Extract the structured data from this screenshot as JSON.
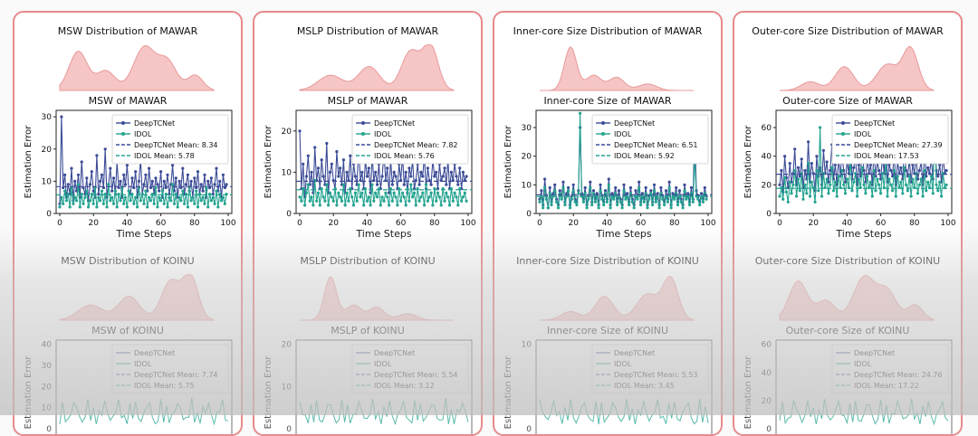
{
  "panels": [
    {
      "mawar": {
        "dist_title": "MSW Distribution of MAWAR",
        "chart_title": "MSW of MAWAR",
        "yticks": [
          0,
          10,
          20,
          30
        ],
        "means": {
          "deeptcnet": 8.34,
          "idol": 5.78
        },
        "legend": [
          "DeepTCNet",
          "IDOL",
          "DeepTCNet Mean: 8.34",
          "IDOL Mean: 5.78"
        ]
      },
      "koinu": {
        "dist_title": "MSW Distribution of KOINU",
        "chart_title": "MSW of KOINU",
        "yticks": [
          0,
          10,
          20,
          30,
          40
        ],
        "legend": [
          "DeepTCNet",
          "IDOL",
          "DeepTCNet Mean: 7.74",
          "IDOL Mean: 5.75"
        ]
      }
    },
    {
      "mawar": {
        "dist_title": "MSLP Distribution of MAWAR",
        "chart_title": "MSLP of MAWAR",
        "yticks": [
          0,
          10,
          20
        ],
        "means": {
          "deeptcnet": 7.82,
          "idol": 5.76
        },
        "legend": [
          "DeepTCNet",
          "IDOL",
          "DeepTCNet Mean: 7.82",
          "IDOL Mean: 5.76"
        ]
      },
      "koinu": {
        "dist_title": "MSLP Distribution of KOINU",
        "chart_title": "MSLP of KOINU",
        "yticks": [
          0,
          10,
          20
        ],
        "legend": [
          "DeepTCNet",
          "IDOL",
          "DeepTCNet Mean: 5.54",
          "IDOL Mean: 3.12"
        ]
      }
    },
    {
      "mawar": {
        "dist_title": "Inner-core Size Distribution of MAWAR",
        "chart_title": "Inner-core Size of MAWAR",
        "yticks": [
          0,
          10,
          20,
          30
        ],
        "means": {
          "deeptcnet": 6.51,
          "idol": 5.92
        },
        "legend": [
          "DeepTCNet",
          "IDOL",
          "DeepTCNet Mean: 6.51",
          "IDOL Mean: 5.92"
        ]
      },
      "koinu": {
        "dist_title": "Inner-core Size Distribution of KOINU",
        "chart_title": "Inner-core Size of KOINU",
        "yticks": [
          0,
          10
        ],
        "legend": [
          "DeepTCNet",
          "IDOL",
          "DeepTCNet Mean: 5.53",
          "IDOL Mean: 3.45"
        ]
      }
    },
    {
      "mawar": {
        "dist_title": "Outer-core Size Distribution of MAWAR",
        "chart_title": "Outer-core Size of MAWAR",
        "yticks": [
          0,
          20,
          40,
          60
        ],
        "means": {
          "deeptcnet": 27.39,
          "idol": 17.53
        },
        "legend": [
          "DeepTCNet",
          "IDOL",
          "DeepTCNet Mean: 27.39",
          "IDOL Mean: 17.53"
        ]
      },
      "koinu": {
        "dist_title": "Outer-core Size Distribution of KOINU",
        "chart_title": "Outer-core Size of KOINU",
        "yticks": [
          0,
          20,
          40,
          60
        ],
        "legend": [
          "DeepTCNet",
          "IDOL",
          "DeepTCNet Mean: 24.76",
          "IDOL Mean: 17.22"
        ]
      }
    }
  ],
  "axis": {
    "ylabel": "Estimation Error",
    "xlabel": "Time Steps",
    "xticks": [
      0,
      20,
      40,
      60,
      80,
      100
    ]
  },
  "colors": {
    "deeptcnet": "#3b4b96",
    "idol": "#23a38f",
    "dist_fill": "#f6c5c5",
    "dist_stroke": "#e89a9a",
    "border": "#e88a8a"
  },
  "chart_data": [
    {
      "type": "line",
      "title": "MSW of MAWAR",
      "xlabel": "Time Steps",
      "ylabel": "Estimation Error",
      "xlim": [
        0,
        100
      ],
      "ylim": [
        0,
        32
      ],
      "series": [
        {
          "name": "DeepTCNet",
          "values": [
            3,
            30,
            8,
            12,
            5,
            9,
            6,
            14,
            4,
            10,
            7,
            12,
            5,
            16,
            8,
            6,
            11,
            4,
            9,
            13,
            7,
            5,
            18,
            6,
            10,
            12,
            8,
            20,
            5,
            9,
            14,
            7,
            11,
            6,
            16,
            8,
            10,
            5,
            12,
            9,
            15,
            7,
            6,
            11,
            8,
            13,
            5,
            10,
            17,
            6,
            9,
            12,
            7,
            14,
            8,
            10,
            6,
            11,
            9,
            7,
            13,
            5,
            10,
            8,
            12,
            6,
            9,
            15,
            7,
            11,
            5,
            10,
            8,
            14,
            6,
            9,
            12,
            7,
            10,
            5,
            11,
            8,
            13,
            6,
            9,
            7,
            12,
            5,
            10,
            8,
            11,
            6,
            9,
            14,
            7,
            10,
            5,
            12,
            8,
            9
          ]
        },
        {
          "name": "IDOL",
          "values": [
            2,
            5,
            3,
            7,
            4,
            6,
            2,
            8,
            3,
            5,
            4,
            9,
            2,
            6,
            3,
            5,
            7,
            2,
            4,
            6,
            3,
            8,
            2,
            5,
            4,
            7,
            3,
            6,
            2,
            9,
            4,
            5,
            3,
            7,
            2,
            6,
            4,
            8,
            3,
            5,
            2,
            7,
            4,
            6,
            3,
            5,
            2,
            8,
            4,
            6,
            3,
            7,
            2,
            5,
            4,
            6,
            3,
            8,
            2,
            5,
            4,
            7,
            3,
            6,
            2,
            5,
            4,
            9,
            3,
            6,
            2,
            5,
            4,
            7,
            3,
            6,
            2,
            8,
            4,
            5,
            3,
            7,
            2,
            6,
            4,
            5,
            3,
            8,
            2,
            6,
            4,
            5,
            3,
            7,
            2,
            6,
            4,
            5,
            3,
            6
          ]
        },
        {
          "name": "DeepTCNet Mean",
          "values": [
            8.34
          ]
        },
        {
          "name": "IDOL Mean",
          "values": [
            5.78
          ]
        }
      ]
    },
    {
      "type": "line",
      "title": "MSLP of MAWAR",
      "xlabel": "Time Steps",
      "ylabel": "Estimation Error",
      "xlim": [
        0,
        100
      ],
      "ylim": [
        0,
        25
      ],
      "series": [
        {
          "name": "DeepTCNet",
          "values": [
            20,
            6,
            12,
            4,
            9,
            14,
            7,
            10,
            5,
            16,
            8,
            11,
            6,
            13,
            9,
            7,
            17,
            5,
            10,
            12,
            8,
            6,
            15,
            9,
            11,
            7,
            13,
            5,
            10,
            8,
            14,
            6,
            12,
            9,
            7,
            16,
            8,
            10,
            6,
            13,
            9,
            11,
            5,
            14,
            8,
            10,
            7,
            12,
            6,
            9,
            15,
            8,
            11,
            5,
            13,
            7,
            10,
            9,
            6,
            12,
            8,
            14,
            7,
            10,
            5,
            11,
            9,
            13,
            6,
            8,
            12,
            7,
            10,
            9,
            14,
            6,
            11,
            8,
            7,
            13,
            9,
            10,
            6,
            12,
            8,
            9,
            11,
            7,
            13,
            6,
            10,
            8,
            12,
            9,
            7,
            11,
            6,
            10,
            8,
            9
          ]
        },
        {
          "name": "IDOL",
          "values": [
            4,
            3,
            6,
            2,
            5,
            7,
            3,
            4,
            2,
            8,
            3,
            5,
            2,
            6,
            4,
            3,
            7,
            2,
            5,
            4,
            3,
            6,
            2,
            5,
            4,
            3,
            7,
            2,
            5,
            3,
            6,
            4,
            2,
            5,
            3,
            7,
            4,
            5,
            2,
            6,
            3,
            4,
            2,
            7,
            3,
            5,
            4,
            6,
            2,
            4,
            3,
            5,
            4,
            2,
            6,
            3,
            5,
            4,
            2,
            6,
            3,
            5,
            4,
            2,
            6,
            3,
            7,
            4,
            5,
            2,
            6,
            3,
            4,
            5,
            2,
            7,
            3,
            4,
            5,
            2,
            6,
            3,
            5,
            4,
            2,
            6,
            3,
            5,
            4,
            2,
            6,
            3,
            5,
            4,
            2,
            6,
            3,
            4,
            5,
            3
          ]
        },
        {
          "name": "DeepTCNet Mean",
          "values": [
            7.82
          ]
        },
        {
          "name": "IDOL Mean",
          "values": [
            5.76
          ]
        }
      ]
    },
    {
      "type": "line",
      "title": "Inner-core Size of MAWAR",
      "xlabel": "Time Steps",
      "ylabel": "Estimation Error",
      "xlim": [
        0,
        100
      ],
      "ylim": [
        0,
        36
      ],
      "series": [
        {
          "name": "DeepTCNet",
          "values": [
            5,
            8,
            3,
            12,
            6,
            2,
            9,
            4,
            7,
            10,
            5,
            3,
            8,
            6,
            11,
            4,
            7,
            9,
            3,
            6,
            10,
            5,
            4,
            8,
            30,
            7,
            5,
            9,
            3,
            6,
            11,
            4,
            8,
            5,
            7,
            3,
            10,
            6,
            4,
            8,
            5,
            12,
            3,
            7,
            6,
            9,
            4,
            8,
            5,
            3,
            10,
            6,
            7,
            4,
            9,
            5,
            3,
            8,
            6,
            11,
            4,
            7,
            5,
            9,
            3,
            6,
            8,
            4,
            10,
            5,
            7,
            3,
            9,
            6,
            4,
            8,
            5,
            11,
            3,
            7,
            6,
            9,
            4,
            8,
            5,
            3,
            10,
            6,
            7,
            4,
            9,
            5,
            30,
            8,
            6,
            4,
            7,
            5,
            9,
            6
          ]
        },
        {
          "name": "IDOL",
          "values": [
            4,
            6,
            2,
            9,
            5,
            2,
            7,
            3,
            6,
            8,
            4,
            2,
            7,
            5,
            9,
            3,
            6,
            8,
            2,
            5,
            8,
            4,
            3,
            7,
            35,
            6,
            4,
            7,
            2,
            5,
            9,
            3,
            7,
            4,
            6,
            2,
            8,
            5,
            3,
            7,
            4,
            10,
            2,
            6,
            5,
            7,
            3,
            6,
            4,
            2,
            8,
            5,
            6,
            3,
            7,
            4,
            2,
            6,
            5,
            9,
            3,
            6,
            4,
            7,
            2,
            5,
            7,
            3,
            8,
            4,
            6,
            2,
            7,
            5,
            3,
            6,
            4,
            9,
            2,
            6,
            5,
            7,
            3,
            6,
            4,
            2,
            8,
            5,
            6,
            3,
            7,
            4,
            20,
            6,
            5,
            3,
            6,
            4,
            7,
            5
          ]
        },
        {
          "name": "DeepTCNet Mean",
          "values": [
            6.51
          ]
        },
        {
          "name": "IDOL Mean",
          "values": [
            5.92
          ]
        }
      ]
    },
    {
      "type": "line",
      "title": "Outer-core Size of MAWAR",
      "xlabel": "Time Steps",
      "ylabel": "Estimation Error",
      "xlim": [
        0,
        100
      ],
      "ylim": [
        0,
        72
      ],
      "series": [
        {
          "name": "DeepTCNet",
          "values": [
            20,
            30,
            15,
            40,
            25,
            18,
            35,
            22,
            28,
            45,
            20,
            32,
            26,
            38,
            18,
            30,
            24,
            50,
            22,
            35,
            28,
            16,
            40,
            26,
            32,
            20,
            44,
            28,
            36,
            22,
            30,
            48,
            24,
            34,
            20,
            38,
            26,
            42,
            30,
            22,
            36,
            28,
            55,
            24,
            32,
            40,
            20,
            34,
            26,
            46,
            30,
            22,
            38,
            28,
            34,
            20,
            44,
            26,
            36,
            30,
            24,
            40,
            28,
            50,
            22,
            34,
            30,
            26,
            42,
            20,
            36,
            28,
            32,
            24,
            46,
            30,
            26,
            38,
            22,
            34,
            28,
            40,
            24,
            30,
            36,
            20,
            44,
            26,
            32,
            28,
            38,
            24,
            64,
            30,
            26,
            34,
            22,
            40,
            28,
            30
          ]
        },
        {
          "name": "IDOL",
          "values": [
            12,
            18,
            10,
            25,
            15,
            8,
            22,
            14,
            20,
            30,
            12,
            24,
            16,
            28,
            10,
            20,
            14,
            35,
            12,
            22,
            18,
            8,
            30,
            16,
            60,
            12,
            28,
            18,
            24,
            14,
            20,
            32,
            16,
            22,
            12,
            26,
            18,
            30,
            20,
            14,
            24,
            18,
            38,
            16,
            22,
            28,
            12,
            24,
            18,
            32,
            20,
            14,
            26,
            18,
            22,
            12,
            30,
            16,
            24,
            20,
            14,
            28,
            18,
            36,
            12,
            24,
            20,
            16,
            30,
            12,
            26,
            18,
            22,
            14,
            32,
            20,
            16,
            26,
            12,
            24,
            18,
            28,
            14,
            20,
            24,
            12,
            30,
            16,
            22,
            18,
            26,
            14,
            66,
            20,
            16,
            22,
            12,
            28,
            18,
            20
          ]
        },
        {
          "name": "DeepTCNet Mean",
          "values": [
            27.39
          ]
        },
        {
          "name": "IDOL Mean",
          "values": [
            17.53
          ]
        }
      ]
    }
  ]
}
